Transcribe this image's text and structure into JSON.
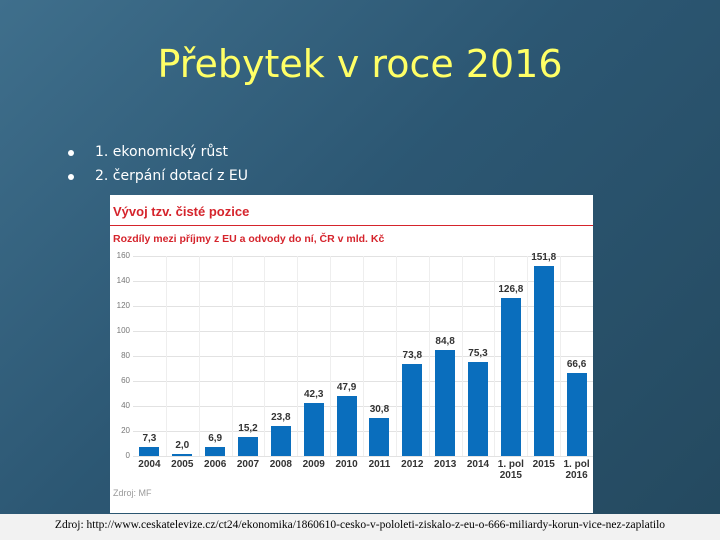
{
  "slide": {
    "title": "Přebytek v roce 2016",
    "bullets": [
      "1. ekonomický růst",
      "2. čerpání dotací z EU"
    ],
    "source": "Zdroj: http://www.ceskatelevize.cz/ct24/ekonomika/1860610-cesko-v-pololeti-ziskalo-z-eu-o-666-miliardy-korun-vice-nez-zaplatilo"
  },
  "chart_data": {
    "type": "bar",
    "title": "Vývoj tzv. čisté pozice",
    "subtitle": "Rozdíly mezi příjmy z EU a odvody do ní, ČR v mld. Kč",
    "categories": [
      "2004",
      "2005",
      "2006",
      "2007",
      "2008",
      "2009",
      "2010",
      "2011",
      "2012",
      "2013",
      "2014",
      "1. pol 2015",
      "2015",
      "1. pol 2016"
    ],
    "values": [
      7.3,
      2.0,
      6.9,
      15.2,
      23.8,
      42.3,
      47.9,
      30.8,
      73.8,
      84.8,
      75.3,
      126.8,
      151.8,
      66.6
    ],
    "value_labels": [
      "7,3",
      "2,0",
      "6,9",
      "15,2",
      "23,8",
      "42,3",
      "47,9",
      "30,8",
      "73,8",
      "84,8",
      "75,3",
      "126,8",
      "151,8",
      "66,6"
    ],
    "color": "#0a6ebd",
    "ylim": [
      0,
      160
    ],
    "yticks": [
      0,
      20,
      40,
      60,
      80,
      100,
      120,
      140,
      160
    ],
    "grid": true,
    "note": "Zdroj: MF"
  }
}
